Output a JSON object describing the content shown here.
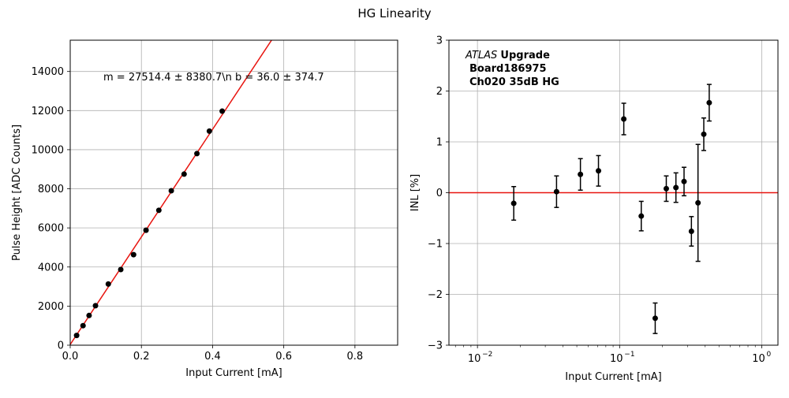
{
  "figure": {
    "title": "HG Linearity"
  },
  "chart_data": [
    {
      "type": "scatter",
      "xlabel": "Input Current [mA]",
      "ylabel": "Pulse Height [ADC Counts]",
      "xlim": [
        0,
        0.92
      ],
      "ylim": [
        0,
        15600
      ],
      "xticks": [
        0,
        0.2,
        0.4,
        0.6,
        0.8
      ],
      "xtick_labels": [
        "0.0",
        "0.2",
        "0.4",
        "0.6",
        "0.8"
      ],
      "yticks": [
        0,
        2000,
        4000,
        6000,
        8000,
        10000,
        12000,
        14000
      ],
      "ytick_labels": [
        "0",
        "2000",
        "4000",
        "6000",
        "8000",
        "10000",
        "12000",
        "14000"
      ],
      "grid": true,
      "series": [
        {
          "type": "scatter",
          "color": "#000000",
          "x": [
            0.018,
            0.036,
            0.053,
            0.071,
            0.107,
            0.142,
            0.178,
            0.213,
            0.249,
            0.284,
            0.32,
            0.356,
            0.391,
            0.427
          ],
          "y": [
            500,
            1000,
            1520,
            2020,
            3130,
            3870,
            4630,
            5880,
            6900,
            7900,
            8750,
            9800,
            10950,
            11970
          ]
        },
        {
          "type": "line",
          "color": "#e8140f",
          "slope": 27514.4,
          "intercept": 36.0
        }
      ],
      "annotation": "m = 27514.4 ± 8380.7\\n b = 36.0 ± 374.7"
    },
    {
      "type": "scatter",
      "xlabel": "Input Current [mA]",
      "ylabel": "INL [%]",
      "xscale": "log",
      "xlim": [
        0.0063,
        1.3
      ],
      "ylim": [
        -3,
        3
      ],
      "xticks": [
        0.01,
        0.1,
        1
      ],
      "xtick_labels": [
        "10",
        "10",
        "10"
      ],
      "xtick_exponents": [
        "−2",
        "−1",
        "0"
      ],
      "yticks": [
        -3,
        -2,
        -1,
        0,
        1,
        2,
        3
      ],
      "ytick_labels": [
        "−3",
        "−2",
        "−1",
        "0",
        "1",
        "2",
        "3"
      ],
      "grid": true,
      "reference_line": {
        "y": 0,
        "color": "#e8140f"
      },
      "series": [
        {
          "type": "errorbar",
          "color": "#000000",
          "x": [
            0.018,
            0.036,
            0.053,
            0.071,
            0.107,
            0.142,
            0.178,
            0.213,
            0.249,
            0.284,
            0.32,
            0.356,
            0.391,
            0.427
          ],
          "y": [
            -0.21,
            0.02,
            0.36,
            0.43,
            1.45,
            -0.46,
            -2.47,
            0.08,
            0.1,
            0.22,
            -0.76,
            -0.2,
            1.15,
            1.77
          ],
          "yerr": [
            0.33,
            0.31,
            0.31,
            0.3,
            0.31,
            0.29,
            0.3,
            0.25,
            0.29,
            0.28,
            0.29,
            1.15,
            0.32,
            0.36
          ]
        }
      ],
      "annotation": {
        "italic": "ATLAS",
        "bold": "Upgrade",
        "line2": "Board186975",
        "line3": "Ch020 35dB HG"
      }
    }
  ]
}
